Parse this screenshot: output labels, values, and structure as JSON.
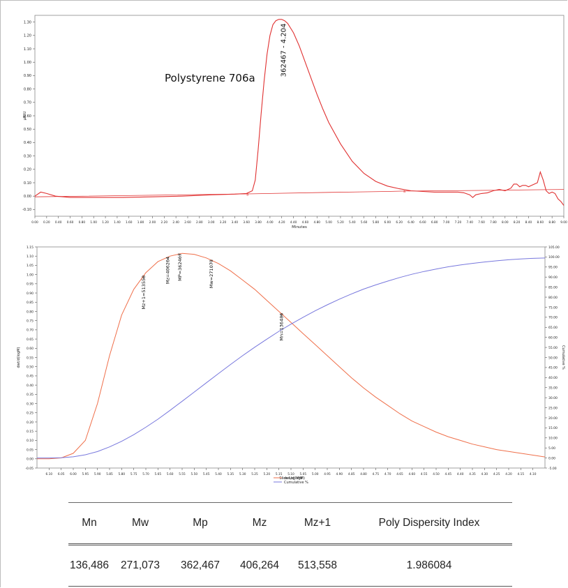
{
  "chart_data": [
    {
      "type": "line",
      "annotation": "Polystyrene 706a",
      "peak_label": "362467 - 4.204",
      "xlabel": "Minutes",
      "ylabel": "µRIU",
      "xlim": [
        0.0,
        9.0
      ],
      "ylim": [
        -0.15,
        1.35
      ],
      "grid": false,
      "x_ticks": [
        "0.00",
        "0.20",
        "0.40",
        "0.60",
        "0.80",
        "1.00",
        "1.20",
        "1.40",
        "1.60",
        "1.80",
        "2.00",
        "2.20",
        "2.40",
        "2.60",
        "2.80",
        "3.00",
        "3.20",
        "3.40",
        "3.60",
        "3.80",
        "4.00",
        "4.20",
        "4.40",
        "4.60",
        "4.80",
        "5.00",
        "5.20",
        "5.40",
        "5.60",
        "5.80",
        "6.00",
        "6.20",
        "6.40",
        "6.60",
        "6.80",
        "7.00",
        "7.20",
        "7.40",
        "7.60",
        "7.80",
        "8.00",
        "8.20",
        "8.40",
        "8.60",
        "8.80",
        "9.00"
      ],
      "y_ticks": [
        "-0.10",
        "0.00",
        "0.10",
        "0.20",
        "0.30",
        "0.40",
        "0.50",
        "0.60",
        "0.70",
        "0.80",
        "0.90",
        "1.00",
        "1.10",
        "1.20",
        "1.30"
      ],
      "series": [
        {
          "color": "#e03030",
          "x": [
            0.0,
            0.1,
            0.2,
            0.35,
            0.6,
            1.0,
            1.5,
            2.0,
            2.5,
            3.0,
            3.4,
            3.6,
            3.7,
            3.75,
            3.8,
            3.85,
            3.9,
            3.95,
            4.0,
            4.05,
            4.1,
            4.15,
            4.2,
            4.25,
            4.3,
            4.4,
            4.5,
            4.6,
            4.7,
            4.8,
            4.9,
            5.0,
            5.2,
            5.4,
            5.6,
            5.8,
            6.0,
            6.2,
            6.4,
            6.6,
            6.8,
            7.0,
            7.2,
            7.3,
            7.4,
            7.45,
            7.5,
            7.6,
            7.7,
            7.8,
            7.9,
            8.0,
            8.1,
            8.15,
            8.2,
            8.25,
            8.3,
            8.35,
            8.4,
            8.45,
            8.5,
            8.55,
            8.6,
            8.65,
            8.7,
            8.75,
            8.8,
            8.85,
            8.9,
            8.95,
            9.0
          ],
          "y": [
            0.0,
            0.03,
            0.02,
            0.0,
            -0.01,
            -0.01,
            -0.01,
            -0.005,
            0.0,
            0.01,
            0.015,
            0.02,
            0.04,
            0.12,
            0.35,
            0.62,
            0.86,
            1.06,
            1.2,
            1.28,
            1.31,
            1.32,
            1.32,
            1.31,
            1.29,
            1.22,
            1.12,
            1.0,
            0.88,
            0.76,
            0.65,
            0.55,
            0.39,
            0.26,
            0.17,
            0.11,
            0.075,
            0.055,
            0.04,
            0.035,
            0.03,
            0.03,
            0.03,
            0.025,
            0.01,
            -0.01,
            0.01,
            0.02,
            0.025,
            0.04,
            0.05,
            0.04,
            0.06,
            0.09,
            0.09,
            0.07,
            0.08,
            0.08,
            0.07,
            0.08,
            0.09,
            0.1,
            0.18,
            0.12,
            0.04,
            0.02,
            0.03,
            0.02,
            -0.02,
            -0.04,
            -0.07
          ]
        },
        {
          "color": "#e03030",
          "x": [
            0.0,
            3.7,
            4.0,
            5.0,
            6.0,
            6.3,
            7.0,
            8.0,
            9.0
          ],
          "y": [
            -0.005,
            0.017,
            0.02,
            0.028,
            0.035,
            0.038,
            0.04,
            0.045,
            0.05
          ]
        }
      ]
    },
    {
      "type": "line",
      "xlabel": "Slice Log MW",
      "ylabel": "dwt/d(logM)",
      "y2label": "Cumulative %",
      "xlim": [
        6.15,
        4.05
      ],
      "ylim": [
        -0.05,
        1.15
      ],
      "y2lim": [
        -5,
        105
      ],
      "grid": false,
      "legend_position": "bottom-center",
      "x_ticks": [
        "6.10",
        "6.05",
        "6.00",
        "5.95",
        "5.90",
        "5.85",
        "5.80",
        "5.75",
        "5.70",
        "5.65",
        "5.60",
        "5.55",
        "5.50",
        "5.45",
        "5.40",
        "5.35",
        "5.30",
        "5.25",
        "5.20",
        "5.15",
        "5.10",
        "5.05",
        "5.00",
        "4.95",
        "4.90",
        "4.85",
        "4.80",
        "4.75",
        "4.70",
        "4.65",
        "4.60",
        "4.55",
        "4.50",
        "4.45",
        "4.40",
        "4.35",
        "4.30",
        "4.25",
        "4.20",
        "4.15",
        "4.10"
      ],
      "y_ticks": [
        "-0.05",
        "0.00",
        "0.05",
        "0.10",
        "0.15",
        "0.20",
        "0.25",
        "0.30",
        "0.35",
        "0.40",
        "0.45",
        "0.50",
        "0.55",
        "0.60",
        "0.65",
        "0.70",
        "0.75",
        "0.80",
        "0.85",
        "0.90",
        "0.95",
        "1.00",
        "1.05",
        "1.10",
        "1.15"
      ],
      "y2_ticks": [
        "-5.00",
        "0.00",
        "5.00",
        "10.00",
        "15.00",
        "20.00",
        "25.00",
        "30.00",
        "35.00",
        "40.00",
        "45.00",
        "50.00",
        "55.00",
        "60.00",
        "65.00",
        "70.00",
        "75.00",
        "80.00",
        "85.00",
        "90.00",
        "95.00",
        "100.00",
        "105.00"
      ],
      "series": [
        {
          "name": "dwt/d(logM)",
          "color": "#ef6f4a",
          "axis": "left",
          "x": [
            6.15,
            6.1,
            6.05,
            6.0,
            5.95,
            5.9,
            5.85,
            5.8,
            5.75,
            5.7,
            5.65,
            5.6,
            5.55,
            5.5,
            5.45,
            5.4,
            5.35,
            5.3,
            5.25,
            5.2,
            5.15,
            5.1,
            5.05,
            5.0,
            4.95,
            4.9,
            4.85,
            4.8,
            4.75,
            4.7,
            4.65,
            4.6,
            4.55,
            4.5,
            4.45,
            4.4,
            4.35,
            4.3,
            4.25,
            4.2,
            4.15,
            4.1,
            4.05
          ],
          "y": [
            0.0,
            0.0,
            0.005,
            0.03,
            0.1,
            0.3,
            0.56,
            0.78,
            0.92,
            1.01,
            1.07,
            1.1,
            1.115,
            1.11,
            1.09,
            1.06,
            1.02,
            0.97,
            0.92,
            0.86,
            0.8,
            0.74,
            0.68,
            0.62,
            0.56,
            0.5,
            0.44,
            0.385,
            0.335,
            0.29,
            0.245,
            0.205,
            0.175,
            0.145,
            0.12,
            0.1,
            0.08,
            0.065,
            0.05,
            0.04,
            0.03,
            0.02,
            0.01
          ]
        },
        {
          "name": "Cumulative %",
          "color": "#7777dd",
          "axis": "right",
          "x": [
            6.15,
            6.1,
            6.05,
            6.0,
            5.95,
            5.9,
            5.85,
            5.8,
            5.75,
            5.7,
            5.65,
            5.6,
            5.55,
            5.5,
            5.45,
            5.4,
            5.35,
            5.3,
            5.25,
            5.2,
            5.15,
            5.1,
            5.05,
            5.0,
            4.95,
            4.9,
            4.85,
            4.8,
            4.75,
            4.7,
            4.65,
            4.6,
            4.55,
            4.5,
            4.45,
            4.4,
            4.35,
            4.3,
            4.25,
            4.2,
            4.15,
            4.1,
            4.05
          ],
          "y": [
            0.0,
            0.0,
            0.1,
            0.6,
            1.6,
            3.2,
            5.5,
            8.3,
            11.6,
            15.3,
            19.3,
            23.7,
            28.2,
            32.8,
            37.4,
            42.0,
            46.5,
            50.9,
            55.1,
            59.1,
            63.0,
            66.6,
            70.0,
            73.2,
            76.2,
            79.0,
            81.6,
            84.0,
            86.1,
            88.0,
            89.8,
            91.4,
            92.8,
            94.0,
            95.1,
            96.0,
            96.8,
            97.5,
            98.1,
            98.6,
            99.0,
            99.3,
            99.5
          ]
        }
      ],
      "markers": [
        {
          "label": "Mz+1=513558",
          "x": 5.71
        },
        {
          "label": "Mz=406264",
          "x": 5.61
        },
        {
          "label": "MP=362467",
          "x": 5.56
        },
        {
          "label": "Mw=271073",
          "x": 5.43
        },
        {
          "label": "Mn=136486",
          "x": 5.14
        }
      ]
    }
  ],
  "table": {
    "headers": [
      "Mn",
      "Mw",
      "Mp",
      "Mz",
      "Mz+1",
      "Poly Dispersity Index"
    ],
    "values": [
      "136,486",
      "271,073",
      "362,467",
      "406,264",
      "513,558",
      "1.986084"
    ]
  }
}
